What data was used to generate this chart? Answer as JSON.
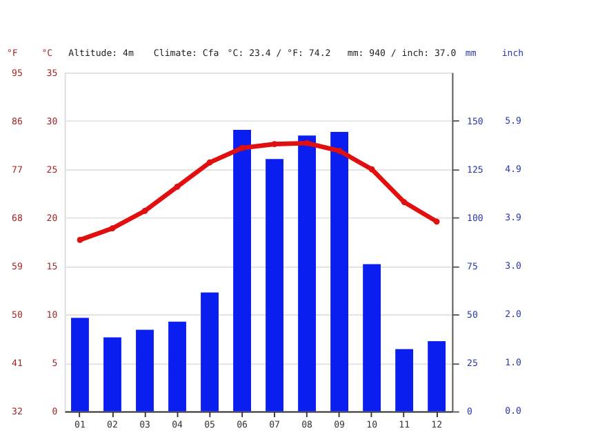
{
  "chart_data": {
    "type": "bar",
    "annotations": [
      "Altitude: 4m",
      "Climate: Cfa",
      "°C: 23.4 / °F: 74.2",
      "mm: 940 / inch: 37.0",
      "inch",
      "0.0",
      "1.0",
      "2.0",
      "3.0",
      "3.9",
      "4.9",
      "5.9"
    ],
    "categories": [
      "01",
      "02",
      "03",
      "04",
      "05",
      "06",
      "07",
      "08",
      "09",
      "10",
      "11",
      "12"
    ],
    "series": [
      {
        "axis": "y2",
        "color": "#0a1ef0",
        "values": [
          48.3,
          38.2,
          42.1,
          46.3,
          61.4,
          145.4,
          130.3,
          142.4,
          144.3,
          76.0,
          32.1,
          36.2
        ]
      },
      {
        "type": "line",
        "axis": "y",
        "color": "#e01010",
        "marker": "circle",
        "line_style": "solid",
        "values": [
          17.7,
          18.9,
          20.7,
          23.2,
          25.7,
          27.2,
          27.6,
          27.7,
          26.9,
          25.0,
          21.6,
          19.6
        ]
      }
    ],
    "ylabel": "°C",
    "ylim": [
      0,
      35
    ],
    "yticks": [
      0,
      5,
      10,
      15,
      20,
      25,
      30,
      35
    ],
    "y2label": "mm",
    "y2lim": [
      0,
      175
    ],
    "y2ticks": [
      0,
      25,
      50,
      75,
      100,
      125,
      150
    ],
    "y3label": "°F",
    "y3lim": [
      32,
      95
    ],
    "y3ticks": [
      32,
      41,
      50,
      59,
      68,
      77,
      86,
      95
    ],
    "grid": "y"
  }
}
